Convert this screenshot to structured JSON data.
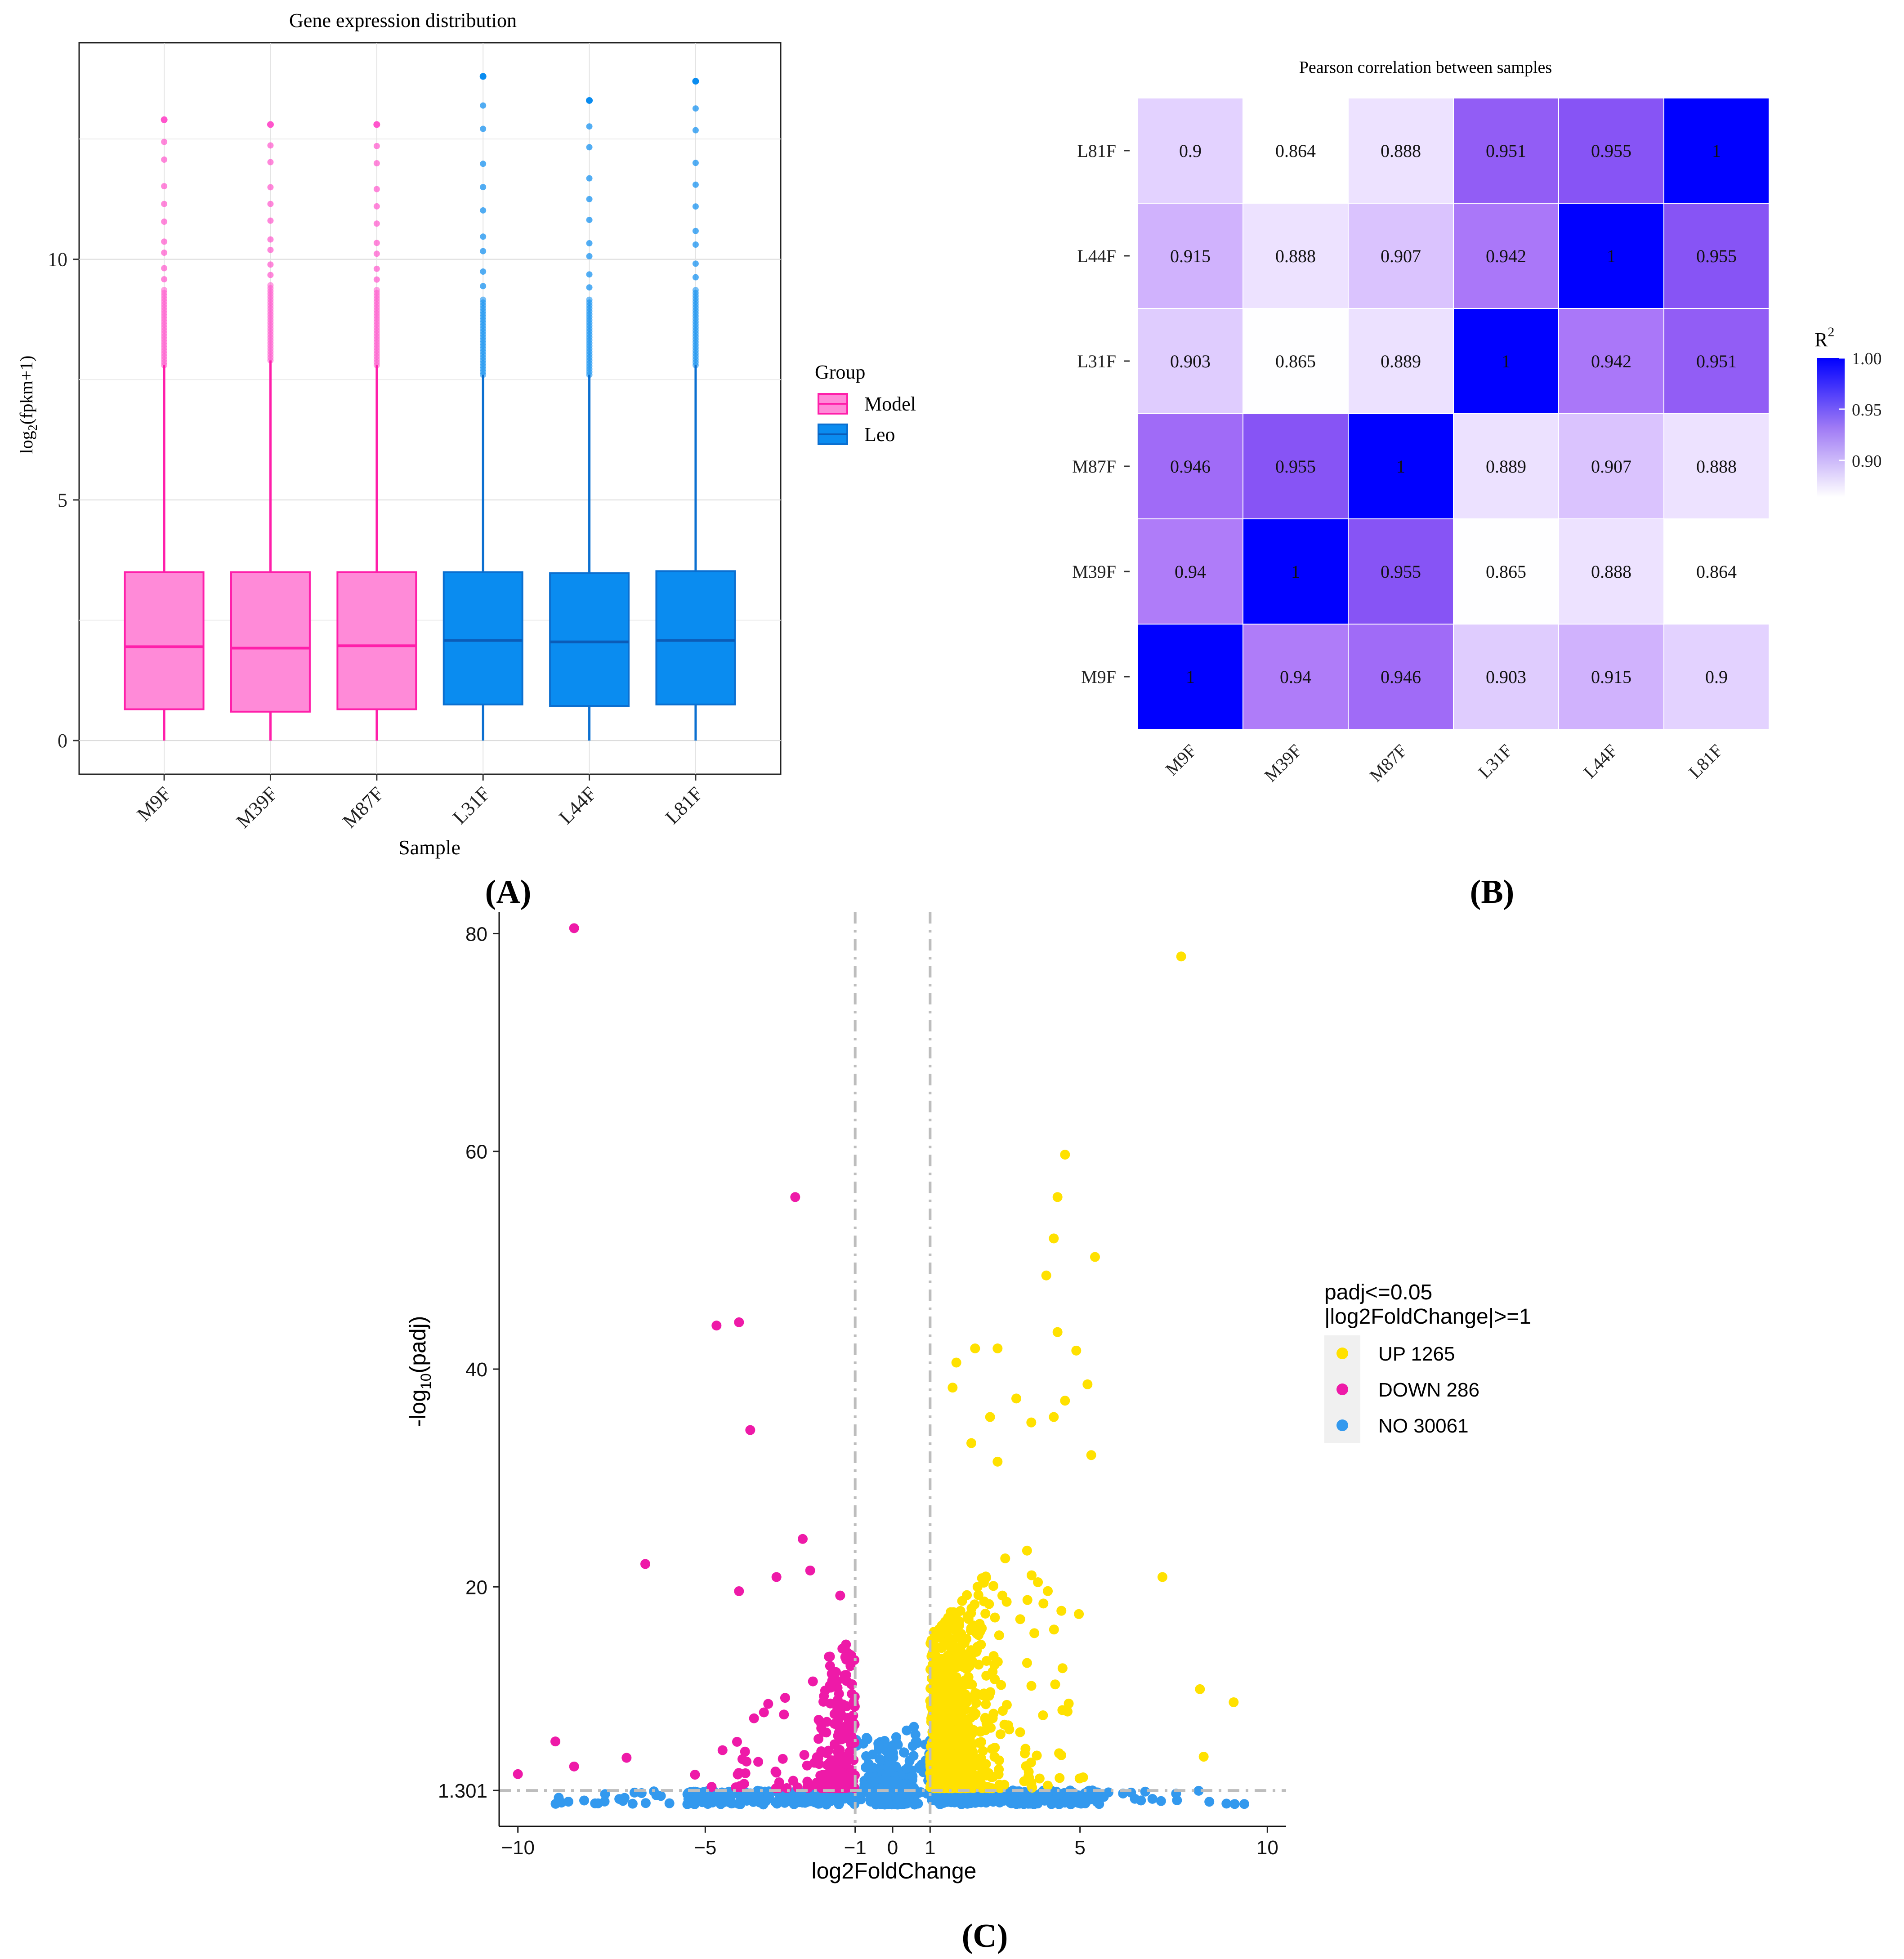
{
  "panel_labels": {
    "a": "(A)",
    "b": "(B)",
    "c": "(C)"
  },
  "colors": {
    "model": "#ff66cc",
    "model_line": "#ff1faa",
    "leo": "#0a8cf0",
    "leo_line": "#0b6fd0",
    "up": "#ffe100",
    "down": "#ee1aa8",
    "no": "#3399ee",
    "heat_high": "#0000ff",
    "heat_low": "#ffffff"
  },
  "chart_data": [
    {
      "type": "boxplot",
      "title": "Gene expression distribution",
      "xlabel": "Sample",
      "ylabel_main": "log",
      "ylabel_sub": "2",
      "ylabel_tail": "(fpkm+1)",
      "ylim": [
        -0.7,
        14.5
      ],
      "yticks": [
        0,
        5,
        10
      ],
      "grid": true,
      "legend": {
        "title": "Group",
        "entries": [
          "Model",
          "Leo"
        ],
        "position": "right"
      },
      "categories": [
        "M9F",
        "M39F",
        "M87F",
        "L31F",
        "L44F",
        "L81F"
      ],
      "group_of": [
        "Model",
        "Model",
        "Model",
        "Leo",
        "Leo",
        "Leo"
      ],
      "boxes": [
        {
          "min": 0,
          "q1": 0.65,
          "median": 1.95,
          "q3": 3.5,
          "whisker_high": 7.8,
          "outlier_max": 12.9
        },
        {
          "min": 0,
          "q1": 0.6,
          "median": 1.92,
          "q3": 3.5,
          "whisker_high": 7.9,
          "outlier_max": 12.8
        },
        {
          "min": 0,
          "q1": 0.65,
          "median": 1.97,
          "q3": 3.5,
          "whisker_high": 7.8,
          "outlier_max": 12.8
        },
        {
          "min": 0,
          "q1": 0.75,
          "median": 2.08,
          "q3": 3.5,
          "whisker_high": 7.6,
          "outlier_max": 13.8
        },
        {
          "min": 0,
          "q1": 0.72,
          "median": 2.05,
          "q3": 3.48,
          "whisker_high": 7.6,
          "outlier_max": 13.3
        },
        {
          "min": 0,
          "q1": 0.75,
          "median": 2.08,
          "q3": 3.52,
          "whisker_high": 7.8,
          "outlier_max": 13.7
        }
      ]
    },
    {
      "type": "heatmap",
      "title": "Pearson correlation between samples",
      "legend_title": "R",
      "legend_title_sup": "2",
      "legend_ticks": [
        "1.00",
        "0.95",
        "0.90"
      ],
      "scale_range": [
        0.864,
        1.0
      ],
      "samples": [
        "M9F",
        "M39F",
        "M87F",
        "L31F",
        "L44F",
        "L81F"
      ],
      "rows_top_to_bottom": [
        "L81F",
        "L44F",
        "L31F",
        "M87F",
        "M39F",
        "M9F"
      ],
      "value_labels": [
        [
          "0.9",
          "0.864",
          "0.888",
          "0.951",
          "0.955",
          "1"
        ],
        [
          "0.915",
          "0.888",
          "0.907",
          "0.942",
          "1",
          "0.955"
        ],
        [
          "0.903",
          "0.865",
          "0.889",
          "1",
          "0.942",
          "0.951"
        ],
        [
          "0.946",
          "0.955",
          "1",
          "0.889",
          "0.907",
          "0.888"
        ],
        [
          "0.94",
          "1",
          "0.955",
          "0.865",
          "0.888",
          "0.864"
        ],
        [
          "1",
          "0.94",
          "0.946",
          "0.903",
          "0.915",
          "0.9"
        ]
      ]
    },
    {
      "type": "scatter",
      "subtype": "volcano",
      "xlabel": "log2FoldChange",
      "ylabel_main": "-log",
      "ylabel_sub": "10",
      "ylabel_tail": "(padj)",
      "xlim": [
        -10.5,
        10.5
      ],
      "ylim": [
        -2,
        82
      ],
      "xticks": [
        "-10",
        "-5",
        "-1",
        "0",
        "1",
        "5",
        "10"
      ],
      "xtick_values": [
        -10,
        -5,
        -1,
        0,
        1,
        5,
        10
      ],
      "yticks": [
        "1.301",
        "20",
        "40",
        "60",
        "80"
      ],
      "ytick_values": [
        1.301,
        20,
        40,
        60,
        80
      ],
      "thresholds": {
        "x": [
          -1,
          1
        ],
        "y": 1.301
      },
      "legend": {
        "title_line1": "padj<=0.05",
        "title_line2": "|log2FoldChange|>=1",
        "entries": [
          "UP 1265",
          "DOWN 286",
          "NO 30061"
        ],
        "position": "right"
      },
      "highlight_points": {
        "up": [
          [
            7.7,
            77.9
          ],
          [
            4.6,
            59.7
          ],
          [
            4.4,
            55.8
          ],
          [
            4.3,
            52.0
          ],
          [
            5.4,
            50.3
          ],
          [
            4.1,
            48.6
          ],
          [
            4.4,
            43.4
          ],
          [
            2.2,
            41.9
          ],
          [
            2.8,
            41.9
          ],
          [
            1.7,
            40.6
          ],
          [
            4.9,
            41.7
          ],
          [
            1.6,
            38.3
          ],
          [
            5.2,
            38.6
          ],
          [
            3.3,
            37.3
          ],
          [
            4.6,
            37.1
          ],
          [
            2.6,
            35.6
          ],
          [
            3.7,
            35.1
          ],
          [
            4.3,
            35.6
          ],
          [
            2.1,
            33.2
          ],
          [
            2.8,
            31.5
          ],
          [
            5.3,
            32.1
          ],
          [
            7.2,
            20.9
          ],
          [
            8.2,
            10.6
          ],
          [
            9.1,
            9.4
          ],
          [
            8.3,
            4.4
          ]
        ],
        "down": [
          [
            -8.5,
            80.5
          ],
          [
            -2.6,
            55.8
          ],
          [
            -4.7,
            44.0
          ],
          [
            -4.1,
            44.3
          ],
          [
            -3.8,
            34.4
          ],
          [
            -6.6,
            22.1
          ],
          [
            -2.4,
            24.4
          ],
          [
            -3.1,
            20.9
          ],
          [
            -4.1,
            19.6
          ],
          [
            -2.2,
            21.5
          ],
          [
            -1.4,
            19.2
          ],
          [
            -10.0,
            2.8
          ],
          [
            -9.0,
            5.8
          ],
          [
            -8.5,
            3.5
          ],
          [
            -7.1,
            4.3
          ]
        ]
      },
      "counts": {
        "up": 1265,
        "down": 286,
        "no": 30061
      }
    }
  ]
}
